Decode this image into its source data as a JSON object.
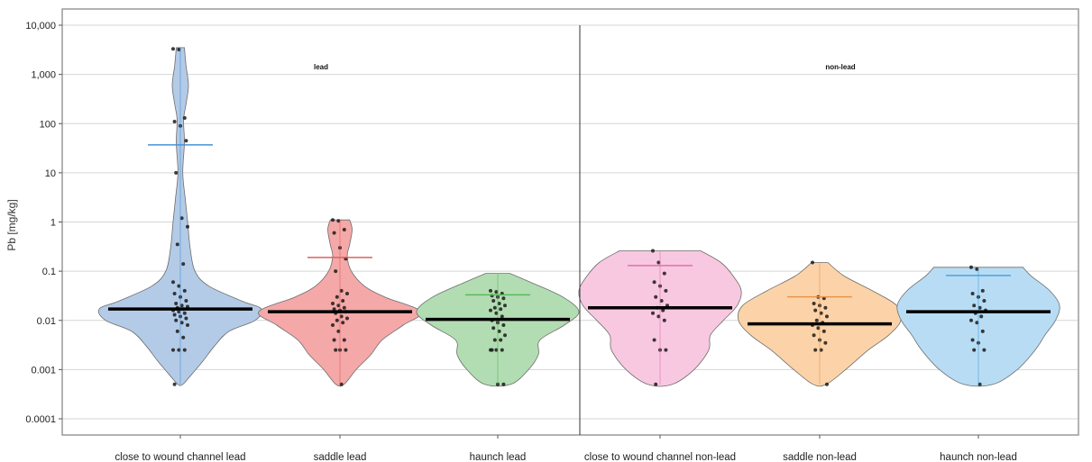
{
  "chart_data": {
    "type": "violin",
    "ylabel": "Pb [mg/kg]",
    "yscale": "log",
    "ylim": [
      0.0001,
      10000
    ],
    "yticks": [
      {
        "value": 10000,
        "label": "10,000"
      },
      {
        "value": 1000,
        "label": "1,000"
      },
      {
        "value": 100,
        "label": "100"
      },
      {
        "value": 10,
        "label": "10"
      },
      {
        "value": 1,
        "label": "1"
      },
      {
        "value": 0.1,
        "label": "0.1"
      },
      {
        "value": 0.01,
        "label": "0.01"
      },
      {
        "value": 0.001,
        "label": "0.001"
      },
      {
        "value": 0.0001,
        "label": "0.0001"
      }
    ],
    "grid": true,
    "panels": [
      {
        "label": "lead",
        "categories": [
          0,
          1,
          2
        ]
      },
      {
        "label": "non-lead",
        "categories": [
          3,
          4,
          5
        ]
      }
    ],
    "categories": [
      "close to wound channel lead",
      "saddle lead",
      "haunch lead",
      "close to wound channel non-lead",
      "saddle non-lead",
      "haunch non-lead"
    ],
    "series": [
      {
        "color": "#b3cbe6",
        "mean_color": "#4a90d9",
        "median": 0.017,
        "mean": 37,
        "min": 0.0005,
        "max": 3500,
        "profile": [
          [
            3500,
            0.05
          ],
          [
            1500,
            0.07
          ],
          [
            600,
            0.1
          ],
          [
            250,
            0.07
          ],
          [
            120,
            0.04
          ],
          [
            40,
            0.05
          ],
          [
            10,
            0.03
          ],
          [
            3,
            0.06
          ],
          [
            1,
            0.09
          ],
          [
            0.3,
            0.12
          ],
          [
            0.1,
            0.18
          ],
          [
            0.05,
            0.35
          ],
          [
            0.025,
            0.75
          ],
          [
            0.017,
            1.0
          ],
          [
            0.01,
            0.92
          ],
          [
            0.006,
            0.6
          ],
          [
            0.003,
            0.42
          ],
          [
            0.0015,
            0.28
          ],
          [
            0.0008,
            0.14
          ],
          [
            0.0005,
            0.03
          ]
        ],
        "points": [
          3300,
          3200,
          130,
          110,
          90,
          45,
          10,
          1.2,
          0.8,
          0.35,
          0.14,
          0.06,
          0.05,
          0.04,
          0.035,
          0.03,
          0.025,
          0.022,
          0.02,
          0.019,
          0.018,
          0.017,
          0.016,
          0.015,
          0.014,
          0.013,
          0.012,
          0.011,
          0.01,
          0.009,
          0.008,
          0.006,
          0.0045,
          0.0025,
          0.0025,
          0.0025,
          0.0005
        ]
      },
      {
        "color": "#f4a8a8",
        "mean_color": "#e06060",
        "median": 0.015,
        "mean": 0.19,
        "min": 0.0005,
        "max": 1.1,
        "profile": [
          [
            1.1,
            0.12
          ],
          [
            0.7,
            0.15
          ],
          [
            0.35,
            0.12
          ],
          [
            0.2,
            0.09
          ],
          [
            0.1,
            0.14
          ],
          [
            0.05,
            0.3
          ],
          [
            0.03,
            0.55
          ],
          [
            0.015,
            1.0
          ],
          [
            0.008,
            0.78
          ],
          [
            0.004,
            0.52
          ],
          [
            0.002,
            0.38
          ],
          [
            0.001,
            0.2
          ],
          [
            0.0005,
            0.05
          ]
        ],
        "points": [
          1.1,
          1.05,
          0.7,
          0.6,
          0.3,
          0.18,
          0.1,
          0.04,
          0.035,
          0.03,
          0.025,
          0.022,
          0.02,
          0.018,
          0.017,
          0.016,
          0.015,
          0.014,
          0.012,
          0.011,
          0.01,
          0.009,
          0.008,
          0.006,
          0.004,
          0.004,
          0.0025,
          0.0025,
          0.0025,
          0.0005
        ]
      },
      {
        "color": "#b2ddb2",
        "mean_color": "#5cb85c",
        "median": 0.0105,
        "mean": 0.033,
        "min": 0.0005,
        "max": 0.09,
        "profile": [
          [
            0.09,
            0.15
          ],
          [
            0.06,
            0.4
          ],
          [
            0.03,
            0.8
          ],
          [
            0.015,
            1.0
          ],
          [
            0.008,
            0.82
          ],
          [
            0.004,
            0.52
          ],
          [
            0.002,
            0.5
          ],
          [
            0.001,
            0.38
          ],
          [
            0.0005,
            0.16
          ]
        ],
        "points": [
          0.04,
          0.038,
          0.035,
          0.032,
          0.03,
          0.028,
          0.025,
          0.022,
          0.02,
          0.018,
          0.017,
          0.016,
          0.014,
          0.012,
          0.01,
          0.009,
          0.008,
          0.007,
          0.006,
          0.005,
          0.004,
          0.004,
          0.0025,
          0.0025,
          0.0025,
          0.0025,
          0.0005,
          0.0005
        ]
      },
      {
        "color": "#f8c8e0",
        "mean_color": "#e070b0",
        "median": 0.018,
        "mean": 0.13,
        "min": 0.0005,
        "max": 0.26,
        "profile": [
          [
            0.26,
            0.5
          ],
          [
            0.15,
            0.75
          ],
          [
            0.08,
            0.9
          ],
          [
            0.04,
            1.0
          ],
          [
            0.02,
            0.95
          ],
          [
            0.01,
            0.78
          ],
          [
            0.005,
            0.62
          ],
          [
            0.0025,
            0.6
          ],
          [
            0.001,
            0.42
          ],
          [
            0.0005,
            0.15
          ]
        ],
        "points": [
          0.26,
          0.15,
          0.09,
          0.06,
          0.05,
          0.04,
          0.03,
          0.025,
          0.02,
          0.018,
          0.016,
          0.014,
          0.012,
          0.01,
          0.004,
          0.0025,
          0.0025,
          0.0005
        ]
      },
      {
        "color": "#fcd3a8",
        "mean_color": "#e8944a",
        "median": 0.0085,
        "mean": 0.03,
        "min": 0.0005,
        "max": 0.15,
        "profile": [
          [
            0.15,
            0.1
          ],
          [
            0.08,
            0.3
          ],
          [
            0.04,
            0.65
          ],
          [
            0.02,
            0.95
          ],
          [
            0.01,
            1.0
          ],
          [
            0.005,
            0.85
          ],
          [
            0.0025,
            0.6
          ],
          [
            0.001,
            0.32
          ],
          [
            0.0005,
            0.08
          ]
        ],
        "points": [
          0.15,
          0.03,
          0.028,
          0.022,
          0.02,
          0.018,
          0.016,
          0.014,
          0.012,
          0.01,
          0.009,
          0.008,
          0.007,
          0.006,
          0.005,
          0.004,
          0.0035,
          0.0025,
          0.0025,
          0.0005
        ]
      },
      {
        "color": "#b8dcf4",
        "mean_color": "#4aa3df",
        "median": 0.015,
        "mean": 0.082,
        "min": 0.0005,
        "max": 0.12,
        "profile": [
          [
            0.12,
            0.55
          ],
          [
            0.08,
            0.65
          ],
          [
            0.04,
            0.88
          ],
          [
            0.02,
            1.0
          ],
          [
            0.01,
            0.95
          ],
          [
            0.005,
            0.82
          ],
          [
            0.0025,
            0.7
          ],
          [
            0.001,
            0.48
          ],
          [
            0.0005,
            0.18
          ]
        ],
        "points": [
          0.12,
          0.11,
          0.04,
          0.035,
          0.03,
          0.025,
          0.02,
          0.018,
          0.016,
          0.014,
          0.012,
          0.01,
          0.009,
          0.006,
          0.004,
          0.0035,
          0.0025,
          0.0025,
          0.0005
        ]
      }
    ],
    "annotations": [
      "lead",
      "non-lead"
    ]
  }
}
